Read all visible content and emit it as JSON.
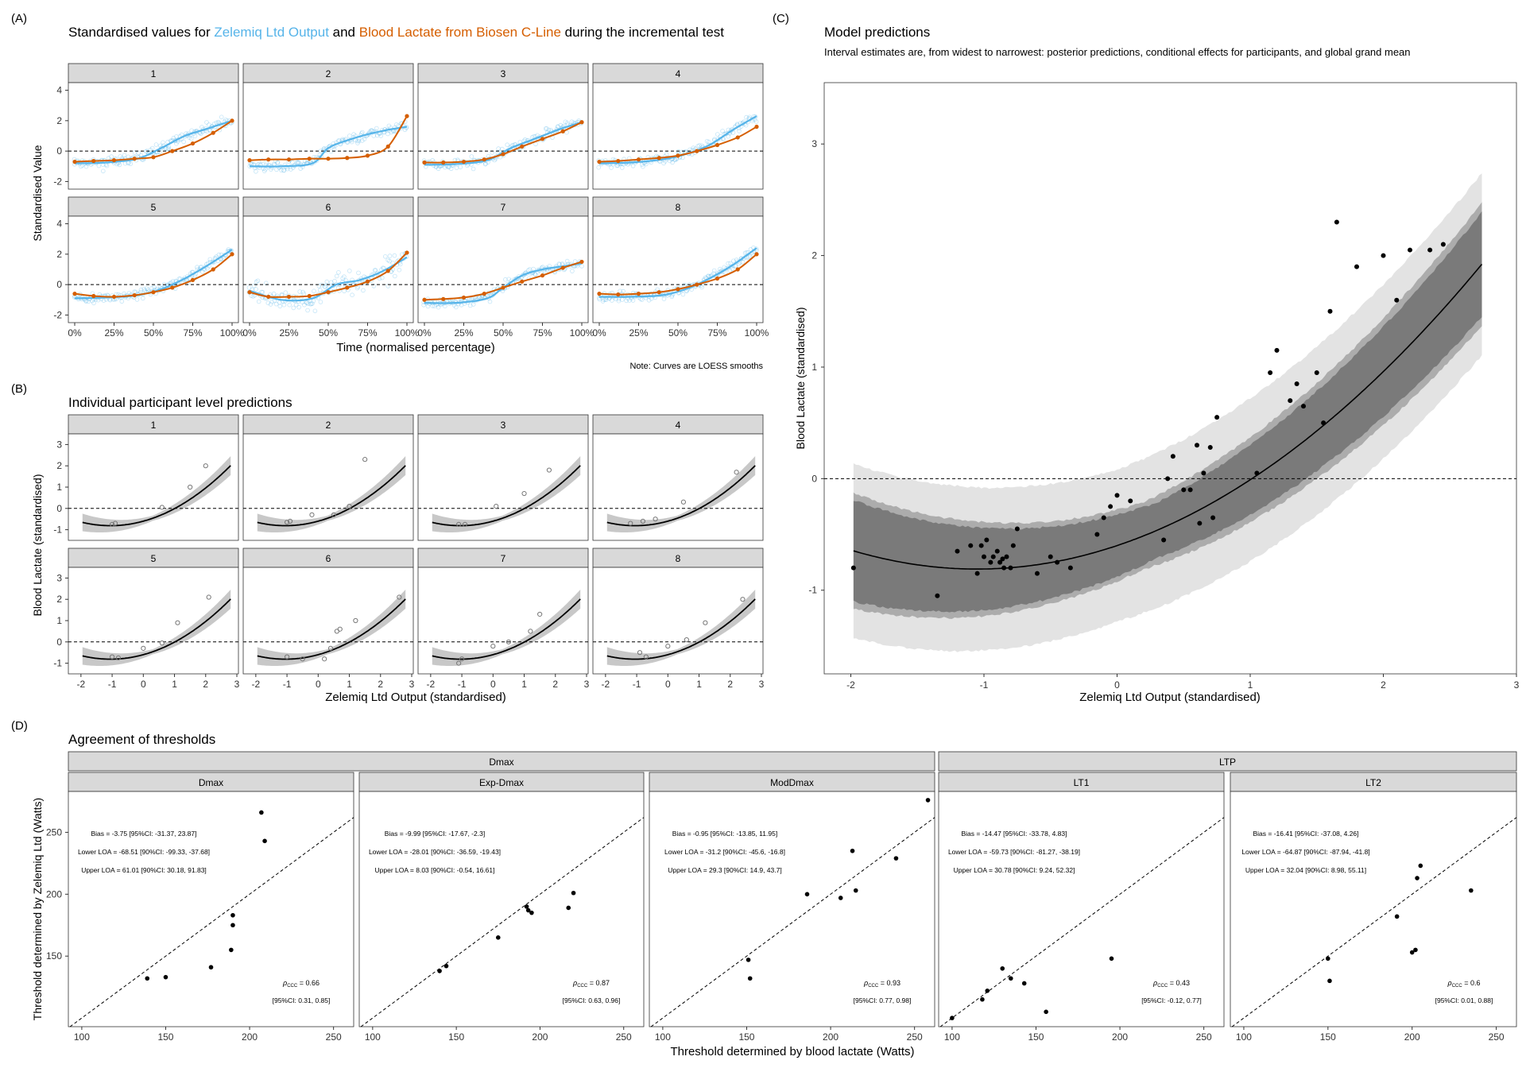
{
  "panel_letters": [
    "(A)",
    "(B)",
    "(C)",
    "(D)"
  ],
  "panelA": {
    "title_parts": [
      {
        "text": "Standardised values for ",
        "color": "#000000"
      },
      {
        "text": "Zelemiq Ltd Output",
        "color": "#56B4E9"
      },
      {
        "text": " and ",
        "color": "#000000"
      },
      {
        "text": "Blood Lactate from Biosen C-Line",
        "color": "#D55E00"
      },
      {
        "text": " during the incremental test",
        "color": "#000000"
      }
    ],
    "ylabel": "Standardised Value",
    "xlabel": "Time (normalised percentage)",
    "note": "Note: Curves are LOESS smooths",
    "y_ticks": [
      "-2",
      "0",
      "2",
      "4"
    ],
    "x_ticks": [
      "0%",
      "25%",
      "50%",
      "75%",
      "100%"
    ],
    "facets": [
      "1",
      "2",
      "3",
      "4",
      "5",
      "6",
      "7",
      "8"
    ]
  },
  "panelB": {
    "title": "Individual participant level predictions",
    "ylabel": "Blood Lactate (standardised)",
    "xlabel": "Zelemiq Ltd Output (standardised)",
    "y_ticks": [
      "-1",
      "0",
      "1",
      "2",
      "3"
    ],
    "x_ticks": [
      "-2",
      "-1",
      "0",
      "1",
      "2",
      "3"
    ],
    "facets": [
      "1",
      "2",
      "3",
      "4",
      "5",
      "6",
      "7",
      "8"
    ]
  },
  "panelC": {
    "title": "Model predictions",
    "subtitle": "Interval estimates are, from widest to narrowest: posterior predictions, conditional effects for participants, and global grand mean",
    "ylabel": "Blood Lactate (standardised)",
    "xlabel": "Zelemiq Ltd Output (standardised)",
    "y_ticks": [
      "-1",
      "0",
      "1",
      "2",
      "3"
    ],
    "x_ticks": [
      "-2",
      "-1",
      "0",
      "1",
      "2",
      "3"
    ]
  },
  "panelD": {
    "title": "Agreement of thresholds",
    "ylabel": "Threshold determined by Zelemiq Ltd (Watts)",
    "xlabel": "Threshold determined by blood lactate (Watts)",
    "groups": [
      "Dmax",
      "LTP"
    ],
    "y_ticks": [
      "150",
      "200",
      "250"
    ],
    "x_ticks": [
      "100",
      "150",
      "200",
      "250"
    ],
    "facets": [
      {
        "name": "Dmax",
        "bias": "Bias = -3.75 [95%CI: -31.37, 23.87]",
        "lower": "Lower LOA = -68.51 [90%CI: -99.33, -37.68]",
        "upper": "Upper LOA = 61.01 [90%CI: 30.18, 91.83]",
        "ccc": "= 0.66",
        "ccc_ci": "[95%CI: 0.31, 0.85]"
      },
      {
        "name": "Exp-Dmax",
        "bias": "Bias = -9.99 [95%CI: -17.67, -2.3]",
        "lower": "Lower LOA = -28.01 [90%CI: -36.59, -19.43]",
        "upper": "Upper LOA = 8.03 [90%CI: -0.54, 16.61]",
        "ccc": "= 0.87",
        "ccc_ci": "[95%CI: 0.63, 0.96]"
      },
      {
        "name": "ModDmax",
        "bias": "Bias = -0.95 [95%CI: -13.85, 11.95]",
        "lower": "Lower LOA = -31.2 [90%CI: -45.6, -16.8]",
        "upper": "Upper LOA = 29.3 [90%CI: 14.9, 43.7]",
        "ccc": "= 0.93",
        "ccc_ci": "[95%CI: 0.77, 0.98]"
      },
      {
        "name": "LT1",
        "bias": "Bias = -14.47 [95%CI: -33.78, 4.83]",
        "lower": "Lower LOA = -59.73 [90%CI: -81.27, -38.19]",
        "upper": "Upper LOA = 30.78 [90%CI: 9.24, 52.32]",
        "ccc": "= 0.43",
        "ccc_ci": "[95%CI: -0.12, 0.77]"
      },
      {
        "name": "LT2",
        "bias": "Bias = -16.41 [95%CI: -37.08, 4.26]",
        "lower": "Lower LOA = -64.87 [90%CI: -87.94, -41.8]",
        "upper": "Upper LOA = 32.04 [90%CI: 8.98, 55.11]",
        "ccc": "= 0.6",
        "ccc_ci": "[95%CI: 0.01, 0.88]"
      }
    ],
    "ccc_symbol": "ρ",
    "ccc_sub": "CCC"
  },
  "colors": {
    "zelemiq": "#56B4E9",
    "lactate": "#D55E00",
    "strip": "#D9D9D9"
  },
  "chart_data": [
    {
      "type": "line",
      "panel": "A",
      "x_unit": "percent",
      "xlim": [
        0,
        100
      ],
      "ylim": [
        -2.5,
        4.5
      ],
      "series": [
        {
          "name": "Zelemiq Ltd Output"
        },
        {
          "name": "Blood Lactate from Biosen C-Line"
        }
      ],
      "facets": [
        {
          "facet": "1",
          "zelemiq_x": [
            0,
            20,
            40,
            55,
            70,
            85,
            100
          ],
          "zelemiq": [
            -0.8,
            -0.75,
            -0.5,
            0.2,
            1.0,
            1.5,
            2.0
          ],
          "lactate_x": [
            0,
            12,
            25,
            38,
            50,
            62,
            75,
            88,
            100
          ],
          "lactate": [
            -0.7,
            -0.65,
            -0.6,
            -0.5,
            -0.4,
            0.0,
            0.5,
            1.2,
            2.0
          ]
        },
        {
          "facet": "2",
          "zelemiq_x": [
            0,
            20,
            40,
            50,
            62,
            75,
            88,
            100
          ],
          "zelemiq": [
            -1.0,
            -1.0,
            -0.8,
            0.2,
            0.7,
            1.1,
            1.4,
            1.6
          ],
          "lactate_x": [
            0,
            12,
            25,
            38,
            50,
            62,
            75,
            88,
            100
          ],
          "lactate": [
            -0.6,
            -0.55,
            -0.55,
            -0.5,
            -0.5,
            -0.45,
            -0.3,
            0.3,
            2.3
          ]
        },
        {
          "facet": "3",
          "zelemiq_x": [
            0,
            20,
            40,
            55,
            70,
            85,
            100
          ],
          "zelemiq": [
            -0.9,
            -0.85,
            -0.6,
            0.2,
            0.8,
            1.4,
            1.9
          ],
          "lactate_x": [
            0,
            12,
            25,
            38,
            50,
            62,
            75,
            88,
            100
          ],
          "lactate": [
            -0.75,
            -0.75,
            -0.7,
            -0.55,
            -0.2,
            0.3,
            0.8,
            1.3,
            1.9
          ]
        },
        {
          "facet": "4",
          "zelemiq_x": [
            0,
            20,
            40,
            55,
            70,
            85,
            100
          ],
          "zelemiq": [
            -0.8,
            -0.75,
            -0.55,
            -0.2,
            0.4,
            1.4,
            2.3
          ],
          "lactate_x": [
            0,
            12,
            25,
            38,
            50,
            62,
            75,
            88,
            100
          ],
          "lactate": [
            -0.7,
            -0.65,
            -0.55,
            -0.45,
            -0.3,
            0.0,
            0.4,
            0.9,
            1.6
          ]
        },
        {
          "facet": "5",
          "zelemiq_x": [
            0,
            20,
            40,
            55,
            70,
            85,
            100
          ],
          "zelemiq": [
            -0.9,
            -0.85,
            -0.7,
            -0.3,
            0.4,
            1.3,
            2.3
          ],
          "lactate_x": [
            0,
            12,
            25,
            38,
            50,
            62,
            75,
            88,
            100
          ],
          "lactate": [
            -0.6,
            -0.75,
            -0.8,
            -0.7,
            -0.5,
            -0.2,
            0.3,
            1.0,
            2.0
          ]
        },
        {
          "facet": "6",
          "zelemiq_x": [
            0,
            20,
            40,
            55,
            70,
            85,
            100
          ],
          "zelemiq": [
            -0.4,
            -1.0,
            -0.9,
            0.0,
            0.3,
            0.9,
            1.8
          ],
          "lactate_x": [
            0,
            12,
            25,
            38,
            50,
            62,
            75,
            88,
            100
          ],
          "lactate": [
            -0.5,
            -0.8,
            -0.8,
            -0.75,
            -0.5,
            -0.2,
            0.2,
            0.9,
            2.1
          ]
        },
        {
          "facet": "7",
          "zelemiq_x": [
            0,
            20,
            40,
            50,
            62,
            75,
            88,
            100
          ],
          "zelemiq": [
            -1.2,
            -1.2,
            -0.9,
            -0.2,
            0.6,
            1.0,
            1.2,
            1.4
          ],
          "lactate_x": [
            0,
            12,
            25,
            38,
            50,
            62,
            75,
            88,
            100
          ],
          "lactate": [
            -1.0,
            -0.95,
            -0.85,
            -0.6,
            -0.2,
            0.2,
            0.6,
            1.1,
            1.5
          ]
        },
        {
          "facet": "8",
          "zelemiq_x": [
            0,
            20,
            40,
            55,
            70,
            85,
            100
          ],
          "zelemiq": [
            -0.8,
            -0.8,
            -0.7,
            -0.3,
            0.4,
            1.3,
            2.4
          ],
          "lactate_x": [
            0,
            12,
            25,
            38,
            50,
            62,
            75,
            88,
            100
          ],
          "lactate": [
            -0.6,
            -0.65,
            -0.6,
            -0.5,
            -0.3,
            0.0,
            0.4,
            1.0,
            2.0
          ]
        }
      ]
    },
    {
      "type": "scatter",
      "panel": "B",
      "xlim": [
        -2.2,
        3
      ],
      "ylim": [
        -1.5,
        3.5
      ],
      "curve": "y = -0.6 + 0.4*x + 0.19*x^2",
      "facets": [
        {
          "facet": "1",
          "x": [
            -1.0,
            -0.9,
            0.6,
            1.5,
            2.0
          ],
          "y": [
            -0.75,
            -0.7,
            0.05,
            1.0,
            2.0
          ]
        },
        {
          "facet": "2",
          "x": [
            -1.0,
            -0.9,
            -0.2,
            0.5,
            1.0,
            1.5
          ],
          "y": [
            -0.65,
            -0.6,
            -0.3,
            -0.3,
            0.1,
            2.3
          ]
        },
        {
          "facet": "3",
          "x": [
            -1.1,
            -0.9,
            0.1,
            1.0,
            1.8
          ],
          "y": [
            -0.75,
            -0.75,
            0.1,
            0.7,
            1.8
          ]
        },
        {
          "facet": "4",
          "x": [
            -1.2,
            -0.8,
            -0.4,
            0.5,
            2.2
          ],
          "y": [
            -0.7,
            -0.6,
            -0.5,
            0.3,
            1.7
          ]
        },
        {
          "facet": "5",
          "x": [
            -1.0,
            -0.8,
            0.0,
            0.6,
            1.1,
            2.1
          ],
          "y": [
            -0.7,
            -0.75,
            -0.3,
            -0.05,
            0.9,
            2.1
          ]
        },
        {
          "facet": "6",
          "x": [
            -1.0,
            -0.5,
            0.2,
            0.4,
            0.6,
            0.7,
            1.2,
            2.6
          ],
          "y": [
            -0.7,
            -0.8,
            -0.8,
            -0.3,
            0.5,
            0.6,
            1.0,
            2.1
          ]
        },
        {
          "facet": "7",
          "x": [
            -1.1,
            -1.0,
            0.0,
            0.5,
            1.2,
            1.5
          ],
          "y": [
            -1.0,
            -0.8,
            -0.2,
            0.0,
            0.5,
            1.3
          ]
        },
        {
          "facet": "8",
          "x": [
            -0.9,
            -0.7,
            0.0,
            0.6,
            1.2,
            2.4
          ],
          "y": [
            -0.5,
            -0.7,
            -0.2,
            0.1,
            0.9,
            2.0
          ]
        }
      ]
    },
    {
      "type": "scatter",
      "panel": "C",
      "xlim": [
        -2.2,
        3
      ],
      "ylim": [
        -1.75,
        3.55
      ],
      "curve": "y = -0.6 + 0.4*x + 0.19*x^2",
      "x": [
        -1.98,
        -1.35,
        -1.2,
        -1.1,
        -1.05,
        -1.02,
        -1.0,
        -0.98,
        -0.95,
        -0.93,
        -0.9,
        -0.88,
        -0.86,
        -0.85,
        -0.83,
        -0.8,
        -0.78,
        -0.75,
        -0.6,
        -0.5,
        -0.45,
        -0.35,
        -0.15,
        -0.1,
        -0.05,
        0.0,
        0.1,
        0.35,
        0.38,
        0.42,
        0.5,
        0.55,
        0.6,
        0.62,
        0.65,
        0.7,
        0.72,
        0.75,
        1.05,
        1.15,
        1.2,
        1.3,
        1.35,
        1.4,
        1.5,
        1.55,
        1.6,
        1.65,
        1.8,
        2.0,
        2.1,
        2.2,
        2.35,
        2.45
      ],
      "y": [
        -0.8,
        -1.05,
        -0.65,
        -0.6,
        -0.85,
        -0.6,
        -0.7,
        -0.55,
        -0.75,
        -0.7,
        -0.65,
        -0.75,
        -0.72,
        -0.8,
        -0.7,
        -0.8,
        -0.6,
        -0.45,
        -0.85,
        -0.7,
        -0.75,
        -0.8,
        -0.5,
        -0.35,
        -0.25,
        -0.15,
        -0.2,
        -0.55,
        0.0,
        0.2,
        -0.1,
        -0.1,
        0.3,
        -0.4,
        0.05,
        0.28,
        -0.35,
        0.55,
        0.05,
        0.95,
        1.15,
        0.7,
        0.85,
        0.65,
        0.95,
        0.5,
        1.5,
        2.3,
        1.9,
        2.0,
        1.6,
        2.05,
        2.05,
        2.1
      ]
    },
    {
      "type": "scatter",
      "panel": "D",
      "xlim": [
        92,
        262
      ],
      "ylim": [
        93,
        283
      ],
      "identity_line": true,
      "facets": [
        {
          "facet": "Dmax",
          "x": [
            139,
            150,
            177,
            189,
            190,
            190,
            207,
            209
          ],
          "y": [
            132,
            133,
            141,
            155,
            183,
            175,
            266,
            243
          ]
        },
        {
          "facet": "Exp-Dmax",
          "x": [
            140,
            144,
            175,
            192,
            193,
            195,
            217,
            220
          ],
          "y": [
            138,
            142,
            165,
            190,
            187,
            185,
            189,
            201
          ]
        },
        {
          "facet": "ModDmax",
          "x": [
            151,
            152,
            186,
            206,
            213,
            215,
            239,
            258
          ],
          "y": [
            147,
            132,
            200,
            197,
            235,
            203,
            229,
            276
          ]
        },
        {
          "facet": "LT1",
          "x": [
            100,
            118,
            121,
            130,
            135,
            143,
            156,
            195
          ],
          "y": [
            100,
            115,
            122,
            140,
            132,
            128,
            105,
            148
          ]
        },
        {
          "facet": "LT2",
          "x": [
            150,
            151,
            191,
            200,
            202,
            203,
            205,
            235
          ],
          "y": [
            148,
            130,
            182,
            153,
            155,
            213,
            223,
            203
          ]
        }
      ]
    }
  ]
}
